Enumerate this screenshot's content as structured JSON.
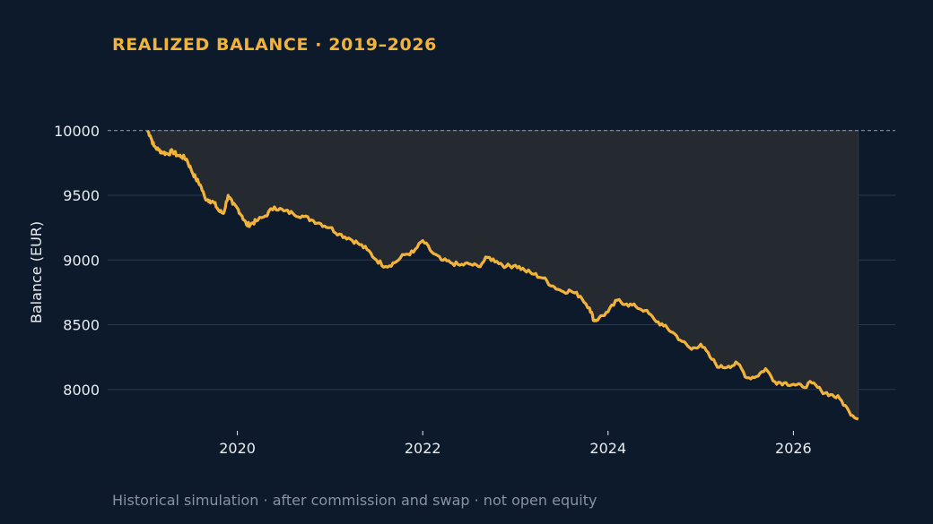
{
  "title": "REALIZED BALANCE · 2019–2026",
  "footnote": "Historical simulation · after commission and swap · not open equity",
  "colors": {
    "background": "#0c1a2b",
    "line": "#f2b33d",
    "fill": "#252a30",
    "grid": "#2b3848",
    "reference": "#8da2b8",
    "text": "#e9edf2",
    "footnote": "#8793a2"
  },
  "chart_data": {
    "type": "line",
    "title": "REALIZED BALANCE · 2019–2026",
    "xlabel": "",
    "ylabel": "Balance (EUR)",
    "xlim": [
      2018.6,
      2027.1
    ],
    "ylim": [
      7680,
      10130
    ],
    "x_ticks": [
      2020,
      2022,
      2024,
      2026
    ],
    "y_ticks": [
      8000,
      8500,
      9000,
      9500,
      10000
    ],
    "grid": "horizontal",
    "reference_line": {
      "y": 10000,
      "style": "dashed"
    },
    "shaded_area": "between starting balance 10000 and the balance line",
    "series": [
      {
        "x": [
          2019.03,
          2019.06,
          2019.1,
          2019.15,
          2019.2,
          2019.25,
          2019.3,
          2019.35,
          2019.4,
          2019.45,
          2019.5,
          2019.55,
          2019.6,
          2019.65,
          2019.7,
          2019.75,
          2019.8,
          2019.85,
          2019.9,
          2019.95,
          2020.0,
          2020.05,
          2020.1,
          2020.15,
          2020.2,
          2020.3,
          2020.4,
          2020.5,
          2020.6,
          2020.7,
          2020.8,
          2020.9,
          2021.0,
          2021.1,
          2021.2,
          2021.3,
          2021.4,
          2021.5,
          2021.6,
          2021.7,
          2021.8,
          2021.9,
          2022.0,
          2022.1,
          2022.2,
          2022.3,
          2022.4,
          2022.5,
          2022.6,
          2022.7,
          2022.8,
          2022.9,
          2023.0,
          2023.1,
          2023.2,
          2023.3,
          2023.4,
          2023.5,
          2023.6,
          2023.7,
          2023.8,
          2023.85,
          2023.9,
          2024.0,
          2024.1,
          2024.2,
          2024.3,
          2024.4,
          2024.5,
          2024.6,
          2024.7,
          2024.8,
          2024.9,
          2025.0,
          2025.1,
          2025.2,
          2025.3,
          2025.4,
          2025.5,
          2025.6,
          2025.7,
          2025.8,
          2025.9,
          2026.0,
          2026.1,
          2026.2,
          2026.3,
          2026.4,
          2026.5,
          2026.6,
          2026.7
        ],
        "y": [
          10000,
          9960,
          9880,
          9850,
          9830,
          9820,
          9840,
          9810,
          9800,
          9780,
          9700,
          9630,
          9580,
          9480,
          9460,
          9440,
          9380,
          9360,
          9500,
          9430,
          9400,
          9340,
          9270,
          9280,
          9300,
          9340,
          9410,
          9380,
          9360,
          9340,
          9310,
          9280,
          9250,
          9200,
          9170,
          9130,
          9080,
          9000,
          8950,
          8980,
          9040,
          9060,
          9150,
          9060,
          9000,
          8980,
          8960,
          8970,
          8950,
          9020,
          8990,
          8950,
          8960,
          8920,
          8890,
          8860,
          8800,
          8760,
          8760,
          8720,
          8630,
          8530,
          8550,
          8600,
          8690,
          8660,
          8640,
          8610,
          8540,
          8490,
          8440,
          8370,
          8310,
          8350,
          8250,
          8170,
          8180,
          8200,
          8090,
          8100,
          8160,
          8060,
          8050,
          8040,
          8020,
          8050,
          7990,
          7960,
          7930,
          7830,
          7770
        ]
      }
    ]
  }
}
